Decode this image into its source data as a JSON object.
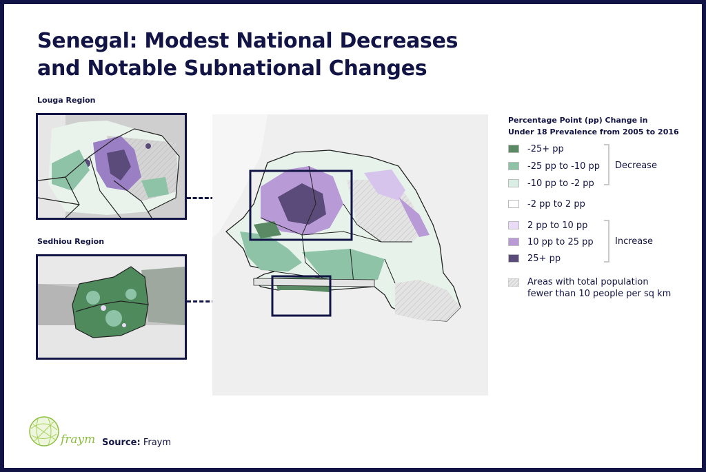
{
  "title_line1": "Senegal: Modest National Decreases",
  "title_line2": "and Notable Subnational Changes",
  "insets": {
    "louga_label": "Louga Region",
    "sedhiou_label": "Sedhiou Region"
  },
  "legend": {
    "title_line1": "Percentage Point (pp) Change in",
    "title_line2": "Under 18 Prevalence from 2005 to 2016",
    "items": [
      {
        "label": "-25+ pp",
        "color": "#5a8a63"
      },
      {
        "label": "-25 pp to -10 pp",
        "color": "#8fc3a7"
      },
      {
        "label": "-10 pp to -2 pp",
        "color": "#d9efe4"
      },
      {
        "label": "-2 pp to 2 pp",
        "color": "#ffffff"
      },
      {
        "label": "2 pp to 10 pp",
        "color": "#eadcf7"
      },
      {
        "label": "10 pp to 25 pp",
        "color": "#b79ad6"
      },
      {
        "label": "25+ pp",
        "color": "#5b4b7a"
      }
    ],
    "decrease_label": "Decrease",
    "increase_label": "Increase",
    "hatch_line1": "Areas with total population",
    "hatch_line2": "fewer than 10 people per sq km"
  },
  "logo": {
    "text": "fraym"
  },
  "source": {
    "prefix": "Source:",
    "name": "Fraym"
  },
  "colors": {
    "navy": "#121445",
    "logo_green": "#8cbf3f"
  }
}
